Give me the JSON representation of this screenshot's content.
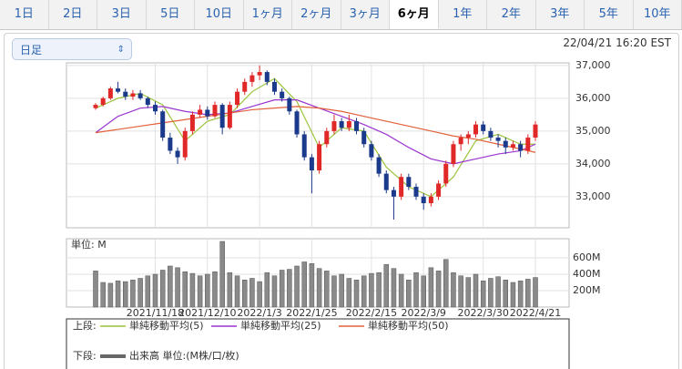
{
  "tabs": [
    "1日",
    "2日",
    "3日",
    "5日",
    "10日",
    "1ヶ月",
    "2ヶ月",
    "3ヶ月",
    "6ヶ月",
    "1年",
    "2年",
    "3年",
    "5年",
    "10年"
  ],
  "selected_tab": 8,
  "selector": "日足",
  "timestamp": "22/04/21 16:20 EST",
  "chart_data": [
    {
      "type": "candlestick",
      "legend_label": "上段:",
      "up_color": "#e02828",
      "down_color": "#1c3a8c",
      "open": [
        35700,
        35800,
        36000,
        36300,
        36200,
        36050,
        36150,
        36000,
        35800,
        35600,
        34800,
        34400,
        34200,
        35000,
        35500,
        35650,
        35450,
        35800,
        35100,
        35800,
        36200,
        36500,
        36700,
        36800,
        36500,
        36200,
        36000,
        35600,
        34900,
        34200,
        33800,
        34600,
        35000,
        35300,
        35100,
        35300,
        35000,
        34600,
        34200,
        33700,
        33200,
        33000,
        33600,
        33300,
        33000,
        32800,
        33000,
        33400,
        34000,
        34600,
        34800,
        34900,
        35200,
        35000,
        34800,
        34700,
        34500,
        34600,
        34400,
        34800
      ],
      "high": [
        35850,
        36050,
        36350,
        36500,
        36300,
        36250,
        36250,
        36050,
        35900,
        35650,
        34950,
        34500,
        35100,
        35600,
        35800,
        35750,
        35900,
        35850,
        35900,
        36300,
        36600,
        36800,
        37000,
        36850,
        36600,
        36300,
        36050,
        35650,
        35000,
        34300,
        34700,
        35100,
        35500,
        35400,
        35500,
        35400,
        35100,
        34700,
        34300,
        33800,
        33300,
        33700,
        33700,
        33400,
        33100,
        33100,
        33500,
        34100,
        34700,
        34900,
        35000,
        35300,
        35300,
        35100,
        34900,
        34800,
        34700,
        34700,
        34900,
        35300
      ],
      "low": [
        35650,
        35750,
        35950,
        36150,
        35950,
        35950,
        35950,
        35700,
        35500,
        34700,
        34300,
        34000,
        34100,
        34900,
        35400,
        35350,
        35400,
        34900,
        35050,
        35700,
        36100,
        36350,
        36550,
        36400,
        36100,
        35900,
        35500,
        34800,
        34100,
        33100,
        33700,
        34500,
        34900,
        35000,
        35000,
        34900,
        34500,
        34100,
        33600,
        33100,
        32300,
        32900,
        33200,
        32900,
        32600,
        32700,
        32900,
        33300,
        33900,
        34400,
        34600,
        34800,
        34900,
        34700,
        34500,
        34300,
        34400,
        34200,
        34300,
        34700
      ],
      "close": [
        35800,
        36000,
        36300,
        36200,
        36050,
        36150,
        36000,
        35800,
        35600,
        34800,
        34400,
        34200,
        35000,
        35500,
        35650,
        35450,
        35800,
        35100,
        35800,
        36200,
        36500,
        36700,
        36800,
        36500,
        36200,
        36000,
        35600,
        34900,
        34200,
        33800,
        34600,
        35000,
        35300,
        35100,
        35300,
        35000,
        34600,
        34200,
        33700,
        33200,
        33000,
        33600,
        33300,
        33000,
        32800,
        33000,
        33400,
        34000,
        34600,
        34800,
        34900,
        35200,
        35000,
        34800,
        34700,
        34500,
        34600,
        34400,
        34800,
        35200
      ],
      "series": [
        {
          "name": "単純移動平均(5)",
          "color": "#9cc43c",
          "x": [
            0,
            3,
            6,
            9,
            12,
            15,
            18,
            21,
            24,
            27,
            30,
            33,
            36,
            39,
            42,
            45,
            48,
            51,
            54,
            57,
            59
          ],
          "values": [
            35700,
            36000,
            36150,
            35800,
            34700,
            35300,
            35500,
            36200,
            36600,
            35900,
            34500,
            35100,
            35000,
            33900,
            33300,
            33000,
            33600,
            34700,
            34900,
            34600,
            34600
          ]
        },
        {
          "name": "単純移動平均(25)",
          "color": "#9a34d0",
          "x": [
            0,
            3,
            6,
            9,
            12,
            15,
            18,
            21,
            24,
            27,
            30,
            33,
            36,
            39,
            42,
            45,
            48,
            51,
            54,
            57,
            59
          ],
          "values": [
            34950,
            35450,
            35700,
            35750,
            35600,
            35500,
            35550,
            35750,
            35950,
            35950,
            35700,
            35450,
            35200,
            34900,
            34500,
            34150,
            34000,
            34150,
            34300,
            34400,
            34600
          ]
        },
        {
          "name": "単純移動平均(50)",
          "color": "#e2603a",
          "x": [
            0,
            3,
            6,
            9,
            12,
            15,
            18,
            21,
            24,
            27,
            30,
            33,
            36,
            39,
            42,
            45,
            48,
            51,
            54,
            57,
            59
          ],
          "values": [
            34950,
            35050,
            35150,
            35250,
            35350,
            35450,
            35550,
            35650,
            35700,
            35750,
            35700,
            35600,
            35450,
            35300,
            35150,
            35000,
            34850,
            34750,
            34600,
            34450,
            34350
          ]
        }
      ],
      "ylim": [
        32050,
        37080
      ],
      "yticks": [
        {
          "value": 33000,
          "label": "33,000"
        },
        {
          "value": 34000,
          "label": "34,000"
        },
        {
          "value": 35000,
          "label": "35,000"
        },
        {
          "value": 36000,
          "label": "36,000"
        },
        {
          "value": 37000,
          "label": "37,000"
        }
      ],
      "grid": true
    },
    {
      "type": "bar",
      "name": "出来高 単位:(M株/口/枚)",
      "legend_label": "下段:",
      "unit_label": "単位: M",
      "color": "#8a8a8a",
      "categories": [
        null,
        null,
        null,
        null,
        null,
        null,
        null,
        null,
        "2021/11/18",
        null,
        null,
        null,
        null,
        null,
        null,
        "2021/12/10",
        null,
        null,
        null,
        null,
        null,
        null,
        "2022/1/3",
        null,
        null,
        null,
        null,
        null,
        null,
        "2022/1/25",
        null,
        null,
        null,
        null,
        null,
        null,
        null,
        "2022/2/15",
        null,
        null,
        null,
        null,
        null,
        null,
        "2022/3/9",
        null,
        null,
        null,
        null,
        null,
        null,
        null,
        "2022/3/30",
        null,
        null,
        null,
        null,
        null,
        null,
        "2022/4/21"
      ],
      "values": [
        440,
        300,
        290,
        320,
        310,
        330,
        350,
        380,
        400,
        450,
        500,
        480,
        430,
        410,
        380,
        400,
        430,
        800,
        420,
        380,
        330,
        350,
        310,
        420,
        380,
        450,
        460,
        500,
        550,
        530,
        470,
        440,
        380,
        400,
        350,
        330,
        380,
        410,
        420,
        520,
        470,
        400,
        330,
        420,
        380,
        480,
        440,
        580,
        420,
        380,
        360,
        400,
        320,
        350,
        370,
        330,
        300,
        320,
        340,
        360
      ],
      "ylim": [
        0,
        833
      ],
      "yticks": [
        {
          "value": 200,
          "label": "200M"
        },
        {
          "value": 400,
          "label": "400M"
        },
        {
          "value": 600,
          "label": "600M"
        }
      ],
      "grid": true
    }
  ]
}
